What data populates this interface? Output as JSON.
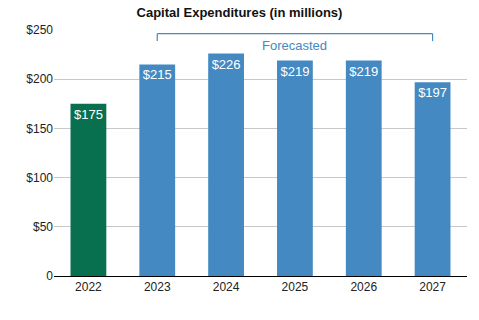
{
  "chart_data": {
    "type": "bar",
    "title": "Capital Expenditures (in millions)",
    "categories": [
      "2022",
      "2023",
      "2024",
      "2025",
      "2026",
      "2027"
    ],
    "values": [
      175,
      215,
      226,
      219,
      219,
      197
    ],
    "value_labels": [
      "$175",
      "$215",
      "$226",
      "$219",
      "$219",
      "$197"
    ],
    "colors": [
      "#08704f",
      "#4489c2",
      "#4489c2",
      "#4489c2",
      "#4489c2",
      "#4489c2"
    ],
    "data_labels": true,
    "ylim": [
      0,
      250
    ],
    "yticks": [
      0,
      {
        "value": 50,
        "label": "$50"
      },
      {
        "value": 100,
        "label": "$100"
      },
      {
        "value": 150,
        "label": "$150"
      },
      {
        "value": 200,
        "label": "$200"
      },
      {
        "value": 250,
        "label": "$250"
      }
    ],
    "grid": true,
    "annotations": [
      {
        "text": "Forecasted",
        "from": "2023",
        "to": "2027"
      }
    ]
  }
}
